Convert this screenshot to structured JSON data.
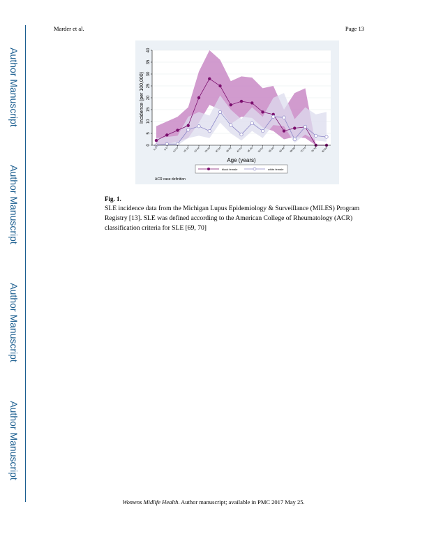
{
  "header": {
    "author": "Marder et al.",
    "page": "Page 13"
  },
  "sidebar": {
    "labels": [
      "Author Manuscript",
      "Author Manuscript",
      "Author Manuscript",
      "Author Manuscript"
    ]
  },
  "figure": {
    "label": "Fig. 1.",
    "caption": "SLE incidence data from the Michigan Lupus Epidemiology & Surveillance (MILES) Program Registry [13]. SLE was defined according to the American College of Rheumatology (ACR) classification criteria for SLE [69, 70]",
    "note": "ACR case definition"
  },
  "footer": {
    "journal": "Womens Midlife Health",
    "rest": ". Author manuscript; available in PMC 2017 May 25."
  },
  "chart_data": {
    "type": "line",
    "xlabel": "Age (years)",
    "ylabel": "Incidence (per 100,000)",
    "ylim": [
      0,
      40
    ],
    "yticks": [
      0,
      5,
      10,
      15,
      20,
      25,
      30,
      35,
      40
    ],
    "categories": [
      "0-4",
      "5-9",
      "10-14",
      "15-19",
      "20-24",
      "25-29",
      "30-34",
      "35-39",
      "40-44",
      "45-49",
      "50-54",
      "55-59",
      "60-64",
      "65-69",
      "70-74",
      "75-79",
      "80-84"
    ],
    "tick_labels": [
      "0-4",
      "5-9",
      "10-14",
      "15-19",
      "20-24",
      "25-29",
      "30-34",
      "35-39",
      "40-44",
      "45-49",
      "50-54",
      "55-59",
      "60-64",
      "65-69",
      "70-74",
      "75-79",
      "80-84"
    ],
    "series": [
      {
        "name": "black female",
        "color": "#7b0f6e",
        "band_color": "#c989c5",
        "values": [
          2,
          4.3,
          6.3,
          8.3,
          20,
          28,
          25,
          17,
          18.5,
          17.8,
          14,
          13,
          6,
          7.2,
          7.7,
          0,
          0
        ],
        "lower": [
          0,
          0.5,
          1.5,
          3,
          9.5,
          17,
          15,
          9,
          12,
          11.5,
          7.5,
          6,
          2.5,
          3.5,
          3,
          0,
          0
        ],
        "upper": [
          8,
          10,
          12,
          16,
          31,
          40,
          36,
          27,
          29,
          28.5,
          24,
          25,
          15,
          22,
          24,
          0,
          0
        ]
      },
      {
        "name": "white female",
        "color": "#8e88c8",
        "band_color": "#dcdcee",
        "values": [
          0,
          0.5,
          0.5,
          6.5,
          8,
          6,
          14,
          8.5,
          4.5,
          9.3,
          6,
          12,
          11.7,
          2.5,
          7.8,
          4,
          3.5
        ],
        "lower": [
          0,
          0,
          0,
          3,
          4,
          3,
          9.5,
          5,
          2,
          6,
          3,
          8.5,
          8,
          1,
          4.5,
          2,
          1.5
        ],
        "upper": [
          3,
          3.5,
          4,
          12,
          14,
          12.5,
          21,
          15,
          11,
          16,
          12,
          20,
          22,
          11,
          16,
          13,
          14
        ]
      }
    ]
  }
}
